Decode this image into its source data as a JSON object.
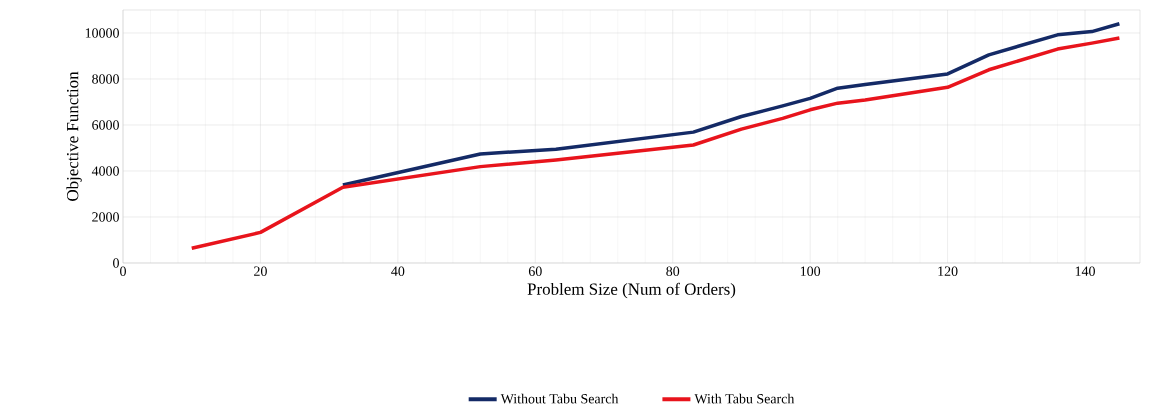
{
  "chart_data": {
    "type": "line",
    "xlabel": "Problem Size (Num of Orders)",
    "ylabel": "Objective Function",
    "x": [
      10,
      20,
      32,
      52,
      63,
      83,
      90,
      96,
      100,
      104,
      108,
      120,
      126,
      136,
      141,
      145
    ],
    "series": [
      {
        "name": "Without Tabu Search",
        "color": "#142a66",
        "values": [
          null,
          null,
          3390,
          4740,
          4950,
          5690,
          6370,
          6830,
          7160,
          7600,
          7760,
          8220,
          9050,
          9920,
          10060,
          10400
        ]
      },
      {
        "name": "With Tabu Search",
        "color": "#e8141c",
        "values": [
          640,
          1330,
          3290,
          4190,
          4480,
          5130,
          5820,
          6290,
          6660,
          6950,
          7090,
          7640,
          8400,
          9300,
          9560,
          9780
        ]
      }
    ],
    "xlim": [
      0,
      148
    ],
    "xticks": [
      0,
      20,
      40,
      60,
      80,
      100,
      120,
      140
    ],
    "ylim": [
      0,
      11000
    ],
    "yticks": [
      0,
      2000,
      4000,
      6000,
      8000,
      10000
    ],
    "grid": true,
    "legend": "bottom",
    "marker": "none",
    "line_style": "solid"
  }
}
